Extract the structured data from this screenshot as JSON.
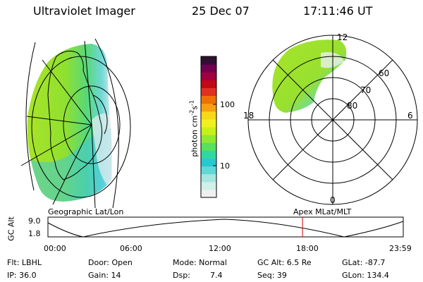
{
  "header": {
    "instrument": "Ultraviolet Imager",
    "date": "25 Dec 07",
    "time": "17:11:46 UT"
  },
  "left_panel": {
    "caption": "Geographic Lat/Lon"
  },
  "right_panel": {
    "caption": "Apex MLat/MLT",
    "mlt_labels": {
      "top": "12",
      "left": "18",
      "right": "6",
      "bottom": "0"
    },
    "lat_labels": [
      "60",
      "70",
      "80"
    ]
  },
  "colorbar": {
    "unit_main": "photon cm",
    "unit_exp1": "-2",
    "unit_mid": "s",
    "unit_exp2": "-1",
    "ticks": [
      "100",
      "10"
    ],
    "colors": [
      "#f0f0f0",
      "#d0f0e8",
      "#a8e4e0",
      "#60d8d8",
      "#28c8d0",
      "#30d8a0",
      "#58e060",
      "#90e830",
      "#c8f018",
      "#f0f020",
      "#f8d818",
      "#f8a010",
      "#f07008",
      "#e03020",
      "#c00818",
      "#a00040",
      "#700050",
      "#301030"
    ]
  },
  "timeline": {
    "axis_label": "GC Alt",
    "y_ticks": [
      "9.0",
      "1.8"
    ],
    "x_ticks": [
      "00:00",
      "06:00",
      "12:00",
      "18:00",
      "23:59"
    ],
    "marker_hour": 17.196,
    "marker_color": "#d00000"
  },
  "info": {
    "flt": "Flt: LBHL",
    "ip": "IP: 36.0",
    "door": "Door: Open",
    "gain": "Gain: 14",
    "mode": "Mode: Normal",
    "dsp_label": "Dsp:",
    "dsp_value": "7.4",
    "gc_alt": "GC Alt: 6.5 Re",
    "seq": "Seq: 39",
    "glat": "GLat: -87.7",
    "glon": "GLon: 134.4"
  }
}
